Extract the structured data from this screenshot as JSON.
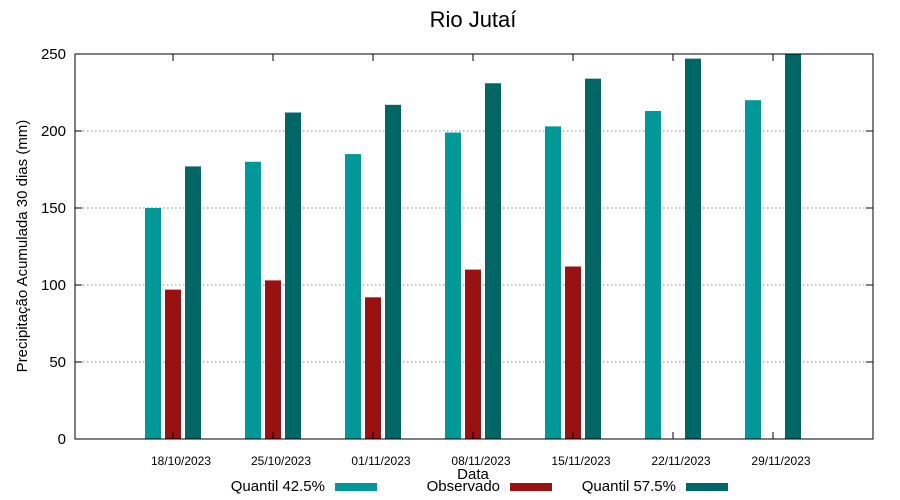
{
  "chart_data": {
    "type": "bar",
    "title": "Rio Jutaí",
    "xlabel": "Data",
    "ylabel": "Precipitação Acumulada 30 dias (mm)",
    "ylim": [
      0,
      250
    ],
    "yticks": [
      0,
      50,
      100,
      150,
      200,
      250
    ],
    "grid": true,
    "legend_position": "bottom",
    "categories": [
      "18/10/2023",
      "25/10/2023",
      "01/11/2023",
      "08/11/2023",
      "15/11/2023",
      "22/11/2023",
      "29/11/2023"
    ],
    "series": [
      {
        "name": "Quantil 42.5%",
        "color": "#009999",
        "values": [
          150,
          180,
          185,
          199,
          203,
          213,
          220
        ]
      },
      {
        "name": "Observado",
        "color": "#991111",
        "values": [
          97,
          103,
          92,
          110,
          112,
          null,
          null
        ]
      },
      {
        "name": "Quantil 57.5%",
        "color": "#006666",
        "values": [
          177,
          212,
          217,
          231,
          234,
          247,
          250
        ]
      }
    ]
  }
}
